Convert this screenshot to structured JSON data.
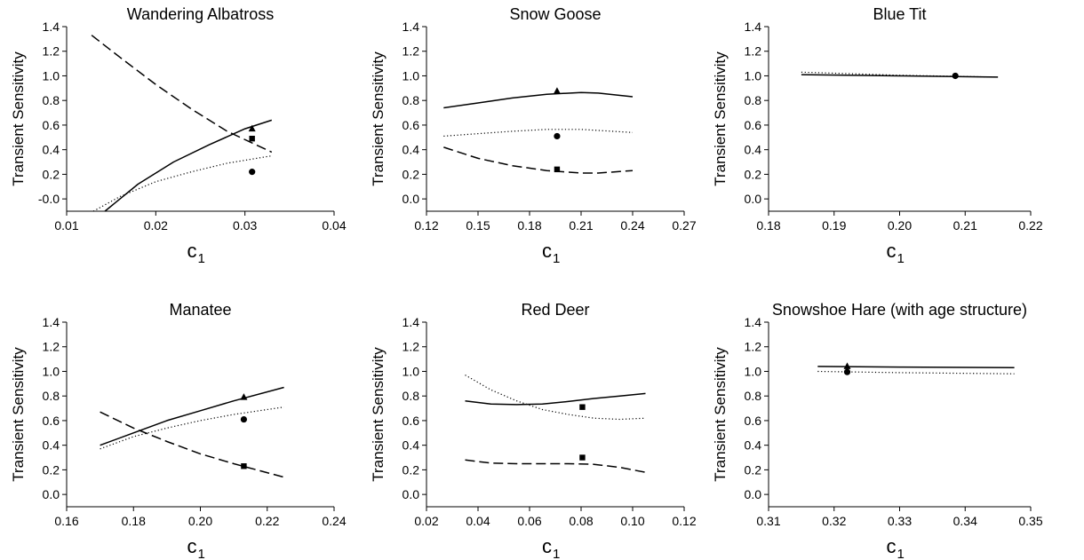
{
  "chart_data": [
    {
      "type": "line",
      "title": "Wandering Albatross",
      "xlabel": "c",
      "xlabel_sub": "1",
      "ylabel": "Transient Sensitivity",
      "xlim": [
        0.01,
        0.04
      ],
      "ylim": [
        -0.1,
        1.4
      ],
      "xticks": [
        "0.01",
        "0.02",
        "0.03",
        "0.04"
      ],
      "yticks": [
        "-0.0",
        "0.2",
        "0.4",
        "0.6",
        "0.8",
        "1.0",
        "1.2",
        "1.4"
      ],
      "series": [
        {
          "style": "solid",
          "x": [
            0.0143,
            0.018,
            0.022,
            0.026,
            0.03,
            0.033
          ],
          "y": [
            -0.1,
            0.12,
            0.3,
            0.44,
            0.57,
            0.64
          ]
        },
        {
          "style": "dotted",
          "x": [
            0.013,
            0.016,
            0.02,
            0.024,
            0.028,
            0.033
          ],
          "y": [
            -0.1,
            0.02,
            0.14,
            0.22,
            0.29,
            0.35
          ]
        },
        {
          "style": "dashed",
          "x": [
            0.0128,
            0.016,
            0.02,
            0.024,
            0.028,
            0.033
          ],
          "y": [
            1.33,
            1.15,
            0.93,
            0.73,
            0.55,
            0.38
          ]
        }
      ],
      "markers": [
        {
          "shape": "triangle",
          "x": 0.0308,
          "y": 0.57
        },
        {
          "shape": "square",
          "x": 0.0308,
          "y": 0.49
        },
        {
          "shape": "circle",
          "x": 0.0308,
          "y": 0.22
        }
      ]
    },
    {
      "type": "line",
      "title": "Snow Goose",
      "xlabel": "c",
      "xlabel_sub": "1",
      "ylabel": "Transient Sensitivity",
      "xlim": [
        0.12,
        0.27
      ],
      "ylim": [
        -0.1,
        1.4
      ],
      "xticks": [
        "0.12",
        "0.15",
        "0.18",
        "0.21",
        "0.24",
        "0.27"
      ],
      "yticks": [
        "0.0",
        "0.2",
        "0.4",
        "0.6",
        "0.8",
        "1.0",
        "1.2",
        "1.4"
      ],
      "series": [
        {
          "style": "solid",
          "x": [
            0.13,
            0.15,
            0.17,
            0.19,
            0.21,
            0.22,
            0.24
          ],
          "y": [
            0.74,
            0.78,
            0.82,
            0.85,
            0.865,
            0.86,
            0.83
          ]
        },
        {
          "style": "dotted",
          "x": [
            0.13,
            0.15,
            0.17,
            0.19,
            0.21,
            0.24
          ],
          "y": [
            0.51,
            0.53,
            0.55,
            0.565,
            0.565,
            0.54
          ]
        },
        {
          "style": "dashed",
          "x": [
            0.13,
            0.15,
            0.17,
            0.19,
            0.21,
            0.22,
            0.24
          ],
          "y": [
            0.42,
            0.33,
            0.27,
            0.23,
            0.21,
            0.21,
            0.23
          ]
        }
      ],
      "markers": [
        {
          "shape": "triangle",
          "x": 0.196,
          "y": 0.875
        },
        {
          "shape": "circle",
          "x": 0.196,
          "y": 0.51
        },
        {
          "shape": "square",
          "x": 0.196,
          "y": 0.24
        }
      ]
    },
    {
      "type": "line",
      "title": "Blue Tit",
      "xlabel": "c",
      "xlabel_sub": "1",
      "ylabel": "Transient Sensitivity",
      "xlim": [
        0.18,
        0.22
      ],
      "ylim": [
        -0.1,
        1.4
      ],
      "xticks": [
        "0.18",
        "0.19",
        "0.20",
        "0.21",
        "0.22"
      ],
      "yticks": [
        "0.0",
        "0.2",
        "0.4",
        "0.6",
        "0.8",
        "1.0",
        "1.2",
        "1.4"
      ],
      "series": [
        {
          "style": "solid",
          "x": [
            0.185,
            0.2,
            0.215
          ],
          "y": [
            1.01,
            1.0,
            0.99
          ]
        },
        {
          "style": "dotted",
          "x": [
            0.185,
            0.2,
            0.215
          ],
          "y": [
            1.03,
            1.005,
            0.99
          ]
        }
      ],
      "markers": [
        {
          "shape": "circle",
          "x": 0.2085,
          "y": 1.0
        }
      ]
    },
    {
      "type": "line",
      "title": "Manatee",
      "xlabel": "c",
      "xlabel_sub": "1",
      "ylabel": "Transient Sensitivity",
      "xlim": [
        0.16,
        0.24
      ],
      "ylim": [
        -0.1,
        1.4
      ],
      "xticks": [
        "0.16",
        "0.18",
        "0.20",
        "0.22",
        "0.24"
      ],
      "yticks": [
        "0.0",
        "0.2",
        "0.4",
        "0.6",
        "0.8",
        "1.0",
        "1.2",
        "1.4"
      ],
      "series": [
        {
          "style": "solid",
          "x": [
            0.17,
            0.18,
            0.19,
            0.2,
            0.21,
            0.225
          ],
          "y": [
            0.4,
            0.5,
            0.6,
            0.68,
            0.76,
            0.87
          ]
        },
        {
          "style": "dotted",
          "x": [
            0.17,
            0.18,
            0.19,
            0.2,
            0.21,
            0.225
          ],
          "y": [
            0.37,
            0.47,
            0.54,
            0.6,
            0.65,
            0.71
          ]
        },
        {
          "style": "dashed",
          "x": [
            0.17,
            0.18,
            0.19,
            0.2,
            0.21,
            0.225
          ],
          "y": [
            0.67,
            0.54,
            0.43,
            0.33,
            0.25,
            0.14
          ]
        }
      ],
      "markers": [
        {
          "shape": "triangle",
          "x": 0.213,
          "y": 0.79
        },
        {
          "shape": "circle",
          "x": 0.213,
          "y": 0.61
        },
        {
          "shape": "square",
          "x": 0.213,
          "y": 0.23
        }
      ]
    },
    {
      "type": "line",
      "title": "Red Deer",
      "xlabel": "c",
      "xlabel_sub": "1",
      "ylabel": "Transient Sensitivity",
      "xlim": [
        0.02,
        0.12
      ],
      "ylim": [
        -0.1,
        1.4
      ],
      "xticks": [
        "0.02",
        "0.04",
        "0.06",
        "0.08",
        "0.10",
        "0.12"
      ],
      "yticks": [
        "0.0",
        "0.2",
        "0.4",
        "0.6",
        "0.8",
        "1.0",
        "1.2",
        "1.4"
      ],
      "series": [
        {
          "style": "solid",
          "x": [
            0.035,
            0.045,
            0.055,
            0.065,
            0.075,
            0.085,
            0.095,
            0.105
          ],
          "y": [
            0.76,
            0.735,
            0.73,
            0.735,
            0.755,
            0.78,
            0.8,
            0.82
          ]
        },
        {
          "style": "dotted",
          "x": [
            0.035,
            0.045,
            0.055,
            0.065,
            0.075,
            0.085,
            0.095,
            0.105
          ],
          "y": [
            0.97,
            0.85,
            0.76,
            0.69,
            0.65,
            0.62,
            0.61,
            0.62
          ]
        },
        {
          "style": "dashed",
          "x": [
            0.035,
            0.045,
            0.055,
            0.065,
            0.075,
            0.085,
            0.095,
            0.105
          ],
          "y": [
            0.28,
            0.255,
            0.25,
            0.25,
            0.25,
            0.245,
            0.22,
            0.18
          ]
        }
      ],
      "markers": [
        {
          "shape": "square",
          "x": 0.0805,
          "y": 0.71
        },
        {
          "shape": "square",
          "x": 0.0805,
          "y": 0.3
        }
      ]
    },
    {
      "type": "line",
      "title": "Snowshoe Hare (with age structure)",
      "xlabel": "c",
      "xlabel_sub": "1",
      "ylabel": "Transient Sensitivity",
      "xlim": [
        0.31,
        0.35
      ],
      "ylim": [
        -0.1,
        1.4
      ],
      "xticks": [
        "0.31",
        "0.32",
        "0.33",
        "0.34",
        "0.35"
      ],
      "yticks": [
        "0.0",
        "0.2",
        "0.4",
        "0.6",
        "0.8",
        "1.0",
        "1.2",
        "1.4"
      ],
      "series": [
        {
          "style": "solid",
          "x": [
            0.3175,
            0.33,
            0.3475
          ],
          "y": [
            1.04,
            1.035,
            1.03
          ]
        },
        {
          "style": "dotted",
          "x": [
            0.3175,
            0.33,
            0.3475
          ],
          "y": [
            1.0,
            0.99,
            0.98
          ]
        }
      ],
      "markers": [
        {
          "shape": "triangle",
          "x": 0.322,
          "y": 1.04
        },
        {
          "shape": "circle",
          "x": 0.322,
          "y": 0.995
        }
      ]
    }
  ]
}
